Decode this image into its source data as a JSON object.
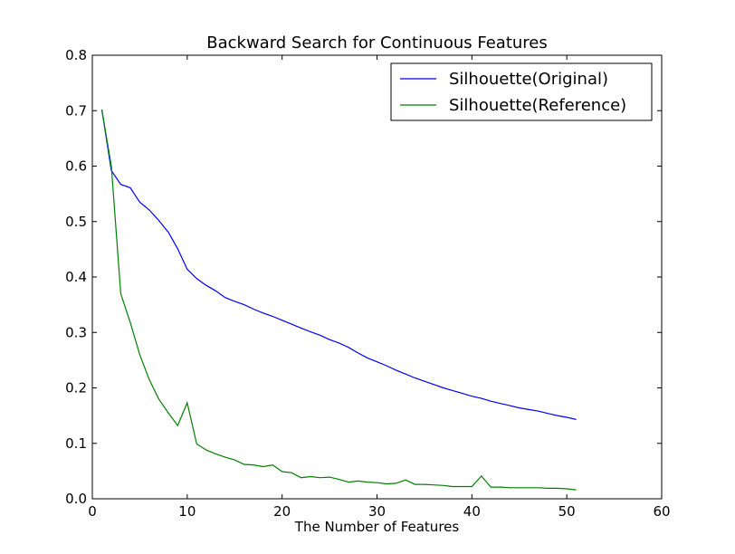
{
  "chart_data": {
    "type": "line",
    "title": "Backward Search for Continuous Features",
    "xlabel": "The Number of Features",
    "ylabel": "",
    "xlim": [
      0,
      60
    ],
    "ylim": [
      0,
      0.8
    ],
    "xticks": [
      0,
      10,
      20,
      30,
      40,
      50,
      60
    ],
    "yticks": [
      0.0,
      0.1,
      0.2,
      0.3,
      0.4,
      0.5,
      0.6,
      0.7,
      0.8
    ],
    "grid": false,
    "legend": "top-right",
    "x": [
      1,
      2,
      3,
      4,
      5,
      6,
      7,
      8,
      9,
      10,
      11,
      12,
      13,
      14,
      15,
      16,
      17,
      18,
      19,
      20,
      21,
      22,
      23,
      24,
      25,
      26,
      27,
      28,
      29,
      30,
      31,
      32,
      33,
      34,
      35,
      36,
      37,
      38,
      39,
      40,
      41,
      42,
      43,
      44,
      45,
      46,
      47,
      48,
      49,
      50,
      51
    ],
    "series": [
      {
        "name": "Silhouette(Original)",
        "color": "#0000ff",
        "values": [
          0.702,
          0.592,
          0.567,
          0.561,
          0.535,
          0.521,
          0.502,
          0.481,
          0.451,
          0.414,
          0.397,
          0.385,
          0.375,
          0.363,
          0.356,
          0.35,
          0.342,
          0.335,
          0.329,
          0.322,
          0.315,
          0.308,
          0.301,
          0.295,
          0.287,
          0.281,
          0.273,
          0.263,
          0.254,
          0.247,
          0.24,
          0.232,
          0.225,
          0.218,
          0.212,
          0.206,
          0.2,
          0.195,
          0.19,
          0.185,
          0.181,
          0.176,
          0.172,
          0.168,
          0.164,
          0.161,
          0.158,
          0.154,
          0.15,
          0.147,
          0.143
        ]
      },
      {
        "name": "Silhouette(Reference)",
        "color": "#008000",
        "values": [
          0.702,
          0.6,
          0.37,
          0.318,
          0.26,
          0.215,
          0.18,
          0.155,
          0.132,
          0.173,
          0.099,
          0.088,
          0.081,
          0.075,
          0.07,
          0.062,
          0.061,
          0.058,
          0.061,
          0.049,
          0.047,
          0.038,
          0.04,
          0.038,
          0.039,
          0.035,
          0.03,
          0.032,
          0.03,
          0.029,
          0.027,
          0.028,
          0.034,
          0.026,
          0.026,
          0.025,
          0.024,
          0.022,
          0.022,
          0.022,
          0.041,
          0.021,
          0.021,
          0.02,
          0.02,
          0.02,
          0.02,
          0.019,
          0.019,
          0.018,
          0.016
        ]
      }
    ]
  }
}
